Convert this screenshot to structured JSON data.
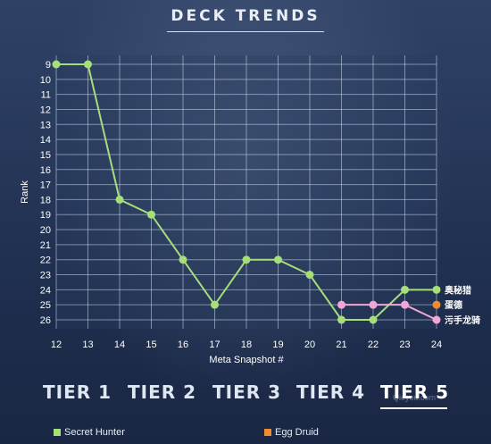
{
  "header": {
    "title": "DECK TRENDS"
  },
  "chart_data": {
    "type": "line",
    "xlabel": "Meta Snapshot #",
    "ylabel": "Rank",
    "x_ticks": [
      12,
      13,
      14,
      15,
      16,
      17,
      18,
      19,
      20,
      21,
      22,
      23,
      24
    ],
    "y_ticks": [
      9,
      10,
      11,
      12,
      13,
      14,
      15,
      16,
      17,
      18,
      19,
      20,
      21,
      22,
      23,
      24,
      25,
      26
    ],
    "xlim": [
      12,
      24
    ],
    "ylim": [
      9,
      26
    ],
    "y_inverted": true,
    "grid": true,
    "series": [
      {
        "name": "Secret Hunter",
        "color": "#a6de7a",
        "x": [
          12,
          13,
          14,
          15,
          16,
          17,
          18,
          19,
          20,
          21,
          22,
          23,
          24
        ],
        "y": [
          9,
          9,
          18,
          19,
          22,
          25,
          22,
          22,
          23,
          26,
          26,
          24,
          24
        ]
      },
      {
        "name": "污手龙骑",
        "color": "#f2a6d6",
        "x": [
          21,
          22,
          23,
          24
        ],
        "y": [
          25,
          25,
          25,
          26
        ]
      },
      {
        "name": "Egg Druid",
        "color": "#f28a35",
        "x": [
          24
        ],
        "y": [
          25
        ]
      }
    ],
    "annotations": [
      {
        "text": "奥秘猎",
        "x": 24,
        "y": 24
      },
      {
        "text": "蛋德",
        "x": 24,
        "y": 25
      },
      {
        "text": "污手龙骑",
        "x": 24,
        "y": 26
      }
    ]
  },
  "tiers": [
    {
      "label": "TIER 1"
    },
    {
      "label": "TIER 2"
    },
    {
      "label": "TIER 3"
    },
    {
      "label": "TIER 4"
    },
    {
      "label": "TIER 5"
    }
  ],
  "legend": [
    {
      "label": "Secret Hunter",
      "color": "#a6de7a"
    },
    {
      "label": "Egg Druid",
      "color": "#f28a35"
    }
  ],
  "watermark": "Qieyou.com"
}
